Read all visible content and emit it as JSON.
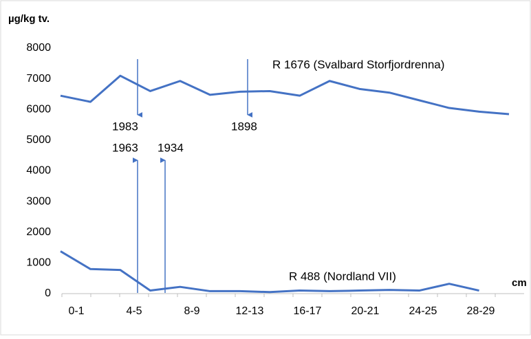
{
  "chart_data": {
    "type": "line",
    "y_label": "µg/kg tv.",
    "x_label": "cm",
    "categories": [
      "0-1",
      null,
      "4-5",
      null,
      "8-9",
      null,
      "12-13",
      null,
      "16-17",
      null,
      "20-21",
      null,
      "24-25",
      null,
      "28-29",
      null
    ],
    "series": [
      {
        "name": "R 1676 (Svalbard Storfjordrenna)",
        "color": "#4472c4",
        "values": [
          6450,
          6250,
          7100,
          6600,
          6930,
          6480,
          6580,
          6600,
          6450,
          6930,
          6670,
          6550,
          6300,
          6050,
          5930,
          5850
        ]
      },
      {
        "name": "R 488 (Nordland VII)",
        "color": "#4472c4",
        "values": [
          1380,
          800,
          770,
          100,
          220,
          80,
          80,
          50,
          100,
          80,
          100,
          120,
          100,
          320,
          100,
          null
        ]
      }
    ],
    "annotations": [
      "1983",
      "1963",
      "1934",
      "1898"
    ],
    "ylim": [
      0,
      8000
    ],
    "yticks": [
      0,
      1000,
      2000,
      3000,
      4000,
      5000,
      6000,
      7000,
      8000
    ],
    "grid": false
  }
}
